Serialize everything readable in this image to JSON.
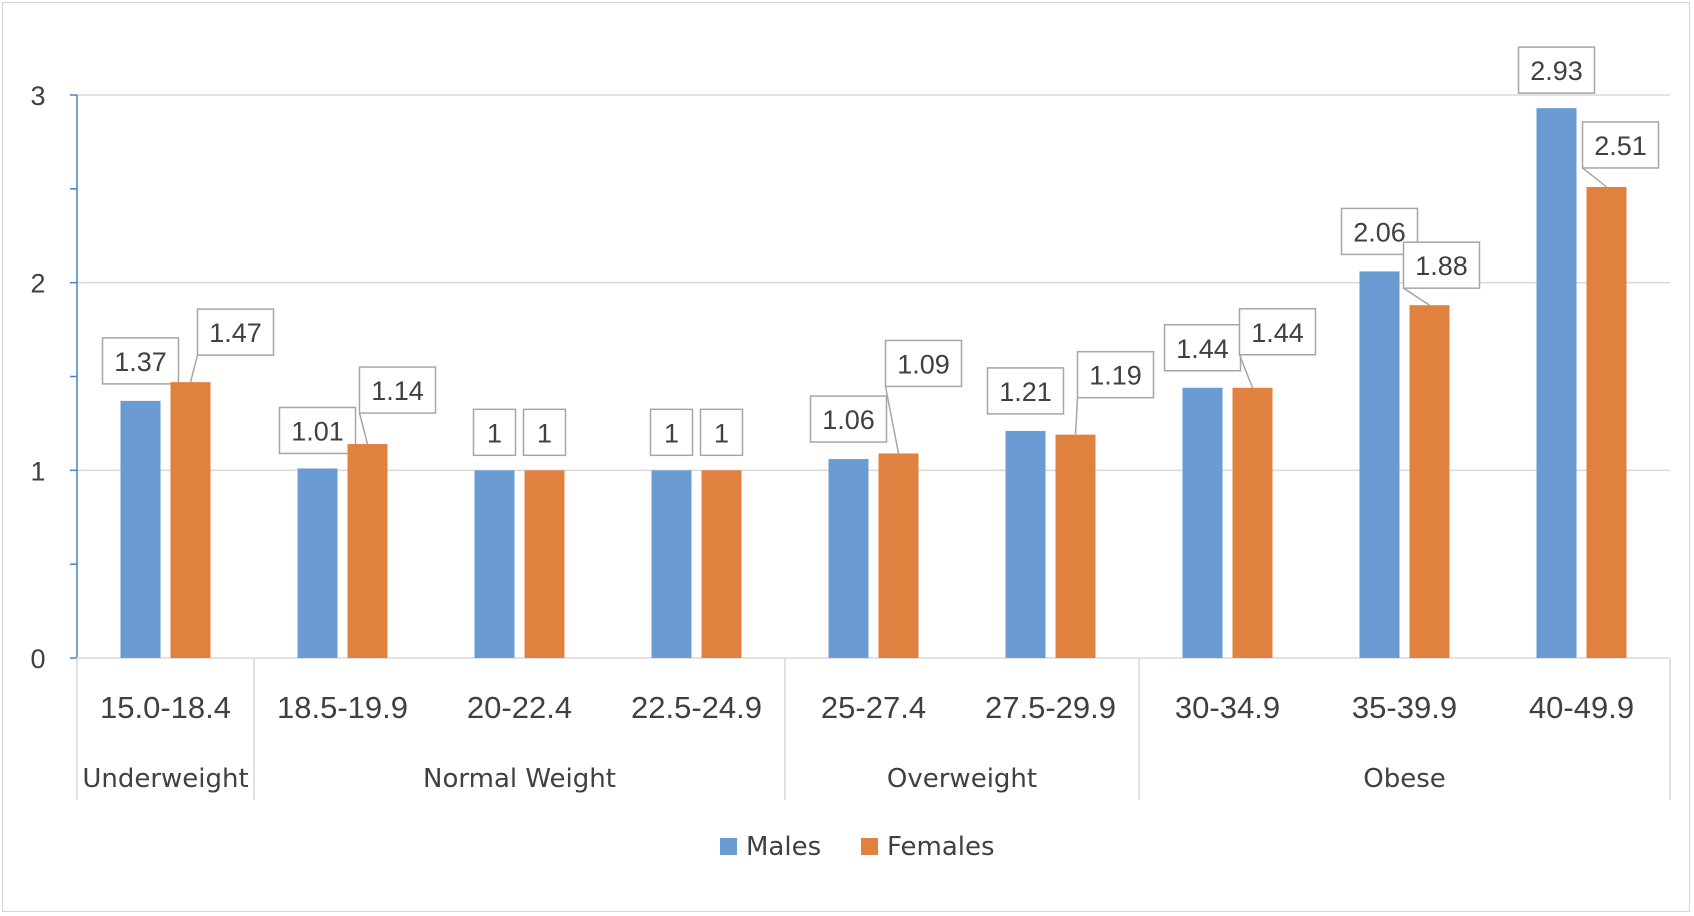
{
  "chart_data": {
    "type": "bar",
    "categories": [
      "15.0-18.4",
      "18.5-19.9",
      "20-22.4",
      "22.5-24.9",
      "25-27.4",
      "27.5-29.9",
      "30-34.9",
      "35-39.9",
      "40-49.9"
    ],
    "category_groups": [
      {
        "label": "Underweight",
        "categories": [
          "15.0-18.4"
        ]
      },
      {
        "label": "Normal Weight",
        "categories": [
          "18.5-19.9",
          "20-22.4",
          "22.5-24.9"
        ]
      },
      {
        "label": "Overweight",
        "categories": [
          "25-27.4",
          "27.5-29.9"
        ]
      },
      {
        "label": "Obese",
        "categories": [
          "30-34.9",
          "35-39.9",
          "40-49.9"
        ]
      }
    ],
    "series": [
      {
        "name": "Males",
        "color": "#6a9bd2",
        "values": [
          1.37,
          1.01,
          1,
          1,
          1.06,
          1.21,
          1.44,
          2.06,
          2.93
        ]
      },
      {
        "name": "Females",
        "color": "#e0813f",
        "values": [
          1.47,
          1.14,
          1,
          1,
          1.09,
          1.19,
          1.44,
          1.88,
          2.51
        ]
      }
    ],
    "ylim": [
      0,
      3
    ],
    "yticks": [
      "0",
      "1",
      "2",
      "3"
    ],
    "grid": true,
    "legend": "bottom",
    "title": "",
    "xlabel": "",
    "ylabel": ""
  }
}
